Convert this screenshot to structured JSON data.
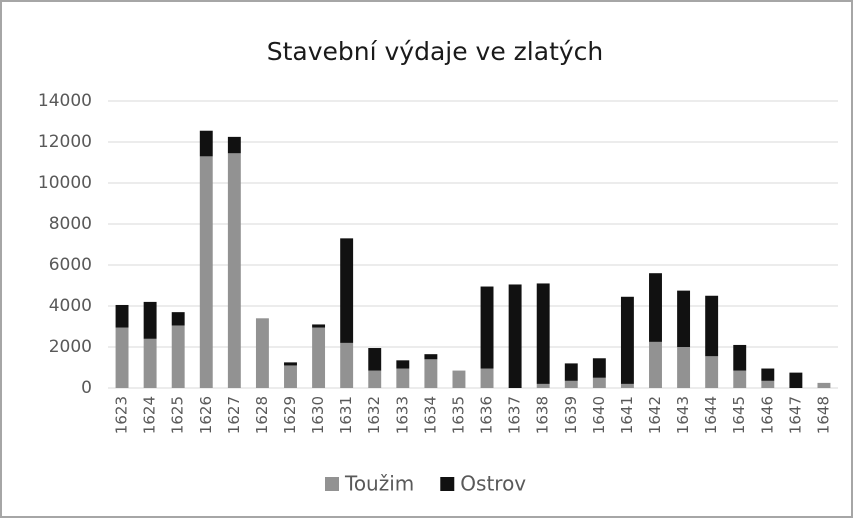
{
  "chart_data": {
    "type": "stacked_bar",
    "title": "Stavební výdaje ve zlatých",
    "categories": [
      "1623",
      "1624",
      "1625",
      "1626",
      "1627",
      "1628",
      "1629",
      "1630",
      "1631",
      "1632",
      "1633",
      "1634",
      "1635",
      "1636",
      "1637",
      "1638",
      "1639",
      "1640",
      "1641",
      "1642",
      "1643",
      "1644",
      "1645",
      "1646",
      "1647",
      "1648"
    ],
    "series": [
      {
        "name": "Toužim",
        "color": "#929292",
        "values": [
          2950,
          2400,
          3050,
          11300,
          11450,
          3400,
          1100,
          2950,
          2200,
          850,
          950,
          1400,
          850,
          950,
          0,
          200,
          350,
          500,
          200,
          2250,
          2000,
          1550,
          850,
          350,
          0,
          250
        ]
      },
      {
        "name": "Ostrov",
        "color": "#111111",
        "values": [
          1100,
          1800,
          650,
          1250,
          800,
          0,
          150,
          150,
          5100,
          1100,
          400,
          250,
          0,
          4000,
          5050,
          4900,
          850,
          950,
          4250,
          3350,
          2750,
          2950,
          1250,
          600,
          750,
          0
        ]
      }
    ],
    "ylim": [
      0,
      14000
    ],
    "yticks": [
      0,
      2000,
      4000,
      6000,
      8000,
      10000,
      12000,
      14000
    ],
    "grid": true,
    "legend": "bottom"
  }
}
